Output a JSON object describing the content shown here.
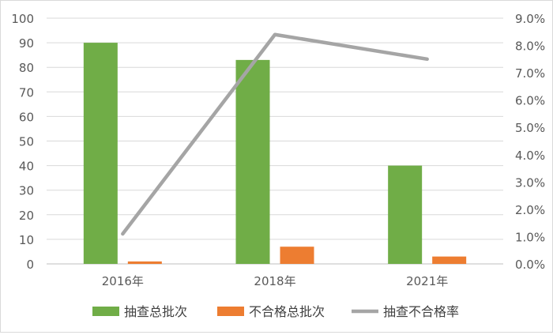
{
  "chart_data": {
    "type": "bar",
    "categories": [
      "2016年",
      "2018年",
      "2021年"
    ],
    "series": [
      {
        "name": "抽查总批次",
        "kind": "bar",
        "axis": "left",
        "color": "#70ad47",
        "values": [
          90,
          83,
          40
        ]
      },
      {
        "name": "不合格总批次",
        "kind": "bar",
        "axis": "left",
        "color": "#ed7d31",
        "values": [
          1,
          7,
          3
        ]
      },
      {
        "name": "抽查不合格率",
        "kind": "line",
        "axis": "right",
        "color": "#a5a5a5",
        "values": [
          0.011,
          0.084,
          0.075
        ]
      }
    ],
    "y_left": {
      "min": 0,
      "max": 100,
      "step": 10,
      "ticks": [
        "0",
        "10",
        "20",
        "30",
        "40",
        "50",
        "60",
        "70",
        "80",
        "90",
        "100"
      ]
    },
    "y_right": {
      "min": 0,
      "max": 0.09,
      "step": 0.01,
      "ticks": [
        "0.0%",
        "1.0%",
        "2.0%",
        "3.0%",
        "4.0%",
        "5.0%",
        "6.0%",
        "7.0%",
        "8.0%",
        "9.0%"
      ]
    },
    "grid": true,
    "legend_position": "bottom"
  }
}
